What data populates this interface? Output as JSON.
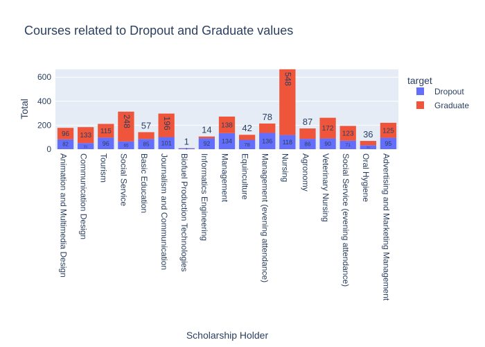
{
  "chart_data": {
    "type": "bar",
    "barmode": "stack",
    "title": "Courses related to Dropout and Graduate values",
    "xlabel": "Scholarship Holder",
    "ylabel": "Total",
    "ylim": [
      0,
      700
    ],
    "yticks": [
      0,
      200,
      400,
      600
    ],
    "grid": true,
    "legend": {
      "title": "target",
      "placement": "right"
    },
    "categories": [
      "Animation and Multimedia Design",
      "Communication Design",
      "Tourism",
      "Social Service",
      "Basic Education",
      "Journalism and Communication",
      "Biofuel Production Technologies",
      "Informatics Engineering",
      "Management",
      "Equinculture",
      "Management (evening attendance)",
      "Nursing",
      "Agronomy",
      "Veterinary Nursing",
      "Social Service (evening attendance)",
      "Oral Hygiene",
      "Advertising and Marketing Management"
    ],
    "series": [
      {
        "name": "Dropout",
        "color": "#636efa",
        "values": [
          82,
          51,
          96,
          65,
          85,
          101,
          8,
          92,
          134,
          78,
          136,
          118,
          86,
          90,
          71,
          33,
          95
        ]
      },
      {
        "name": "Graduate",
        "color": "#ef553b",
        "values": [
          96,
          133,
          115,
          248,
          57,
          196,
          1,
          14,
          138,
          42,
          78,
          548,
          87,
          172,
          123,
          36,
          125
        ]
      }
    ]
  }
}
